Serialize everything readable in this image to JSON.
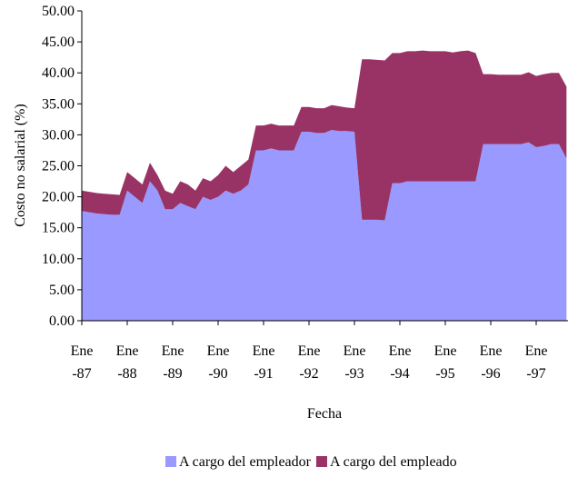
{
  "chart_data": {
    "type": "stacked-area",
    "x_label": "Fecha",
    "y_label": "Costo no salarial (%)",
    "categories": [
      "Ene-87",
      null,
      null,
      null,
      null,
      null,
      "Ene-88",
      null,
      null,
      null,
      null,
      null,
      "Ene-89",
      null,
      null,
      null,
      null,
      null,
      "Ene-90",
      null,
      null,
      null,
      null,
      null,
      "Ene-91",
      null,
      null,
      null,
      null,
      null,
      "Ene-92",
      null,
      null,
      null,
      null,
      null,
      "Ene-93",
      null,
      null,
      null,
      null,
      null,
      "Ene-94",
      null,
      null,
      null,
      null,
      null,
      "Ene-95",
      null,
      null,
      null,
      null,
      null,
      "Ene-96",
      null,
      null,
      null,
      null,
      null,
      "Ene-97",
      null,
      null,
      null,
      null
    ],
    "series": [
      {
        "name": "A cargo del empleador",
        "color": "#9999ff",
        "values": [
          17.7,
          17.5,
          17.3,
          17.2,
          17.1,
          17.1,
          21,
          20,
          19,
          22.5,
          21,
          18,
          18,
          19,
          18.5,
          18,
          20,
          19.5,
          20,
          21,
          20.5,
          21,
          22,
          27.5,
          27.5,
          27.8,
          27.5,
          27.5,
          27.5,
          30.5,
          30.5,
          30.3,
          30.3,
          30.8,
          30.6,
          30.6,
          30.5,
          16.3,
          16.3,
          16.3,
          16.2,
          22.2,
          22.2,
          22.5,
          22.5,
          22.5,
          22.5,
          22.5,
          22.5,
          22.5,
          22.5,
          22.5,
          22.5,
          28.5,
          28.5,
          28.5,
          28.5,
          28.5,
          28.5,
          28.8,
          28,
          28.2,
          28.5,
          28.5,
          26.2
        ]
      },
      {
        "name": "A cargo del empleado",
        "color": "#993366",
        "values": [
          3.3,
          3.3,
          3.3,
          3.3,
          3.3,
          3.2,
          3,
          3,
          3,
          3,
          2.5,
          3,
          2.5,
          3.5,
          3.5,
          3,
          3,
          3,
          3.5,
          4,
          3.5,
          4,
          4,
          4,
          4,
          4,
          4,
          4,
          4,
          4,
          4,
          4,
          4,
          4,
          4,
          3.8,
          3.8,
          25.9,
          25.9,
          25.8,
          25.8,
          21,
          21,
          21,
          21,
          21.1,
          21,
          21,
          21,
          20.8,
          21,
          21.1,
          20.7,
          11.3,
          11.3,
          11.2,
          11.2,
          11.2,
          11.2,
          11.3,
          11.5,
          11.6,
          11.5,
          11.5,
          11.6
        ]
      }
    ],
    "ylim": [
      0,
      50
    ],
    "yticks": [
      {
        "value": 0,
        "label": "0.00"
      },
      {
        "value": 5,
        "label": "5.00"
      },
      {
        "value": 10,
        "label": "10.00"
      },
      {
        "value": 15,
        "label": "15.00"
      },
      {
        "value": 20,
        "label": "20.00"
      },
      {
        "value": 25,
        "label": "25.00"
      },
      {
        "value": 30,
        "label": "30.00"
      },
      {
        "value": 35,
        "label": "35.00"
      },
      {
        "value": 40,
        "label": "40.00"
      },
      {
        "value": 45,
        "label": "45.00"
      },
      {
        "value": 50,
        "label": "50.00"
      }
    ],
    "legend": "bottom"
  }
}
